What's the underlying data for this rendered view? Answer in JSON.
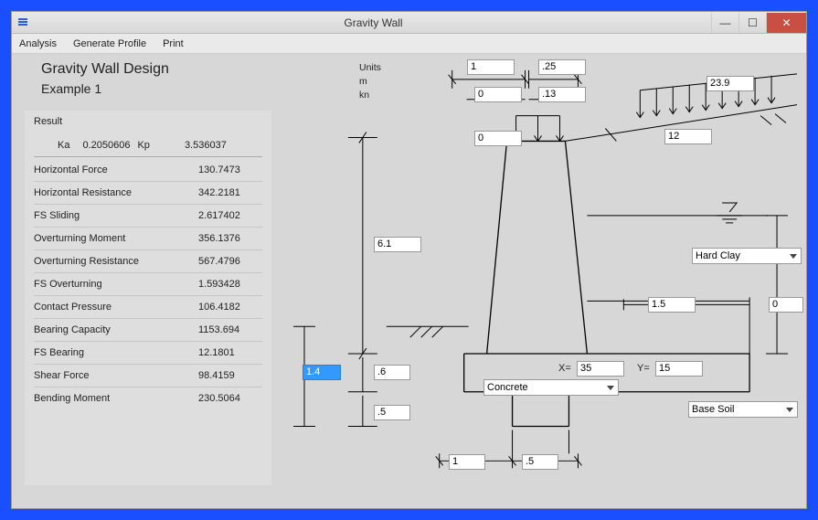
{
  "window": {
    "title": "Gravity Wall"
  },
  "menu": {
    "analysis": "Analysis",
    "generate": "Generate Profile",
    "print": "Print"
  },
  "heading": "Gravity Wall Design",
  "subheading": "Example 1",
  "units": {
    "label": "Units",
    "length": "m",
    "force": "kn"
  },
  "results": {
    "header": "Result",
    "ka_label": "Ka",
    "ka": "0.2050606",
    "kp_label": "Kp",
    "kp": "3.536037",
    "rows": [
      {
        "label": "Horizontal Force",
        "value": "130.7473"
      },
      {
        "label": "Horizontal Resistance",
        "value": "342.2181"
      },
      {
        "label": "FS Sliding",
        "value": "2.617402"
      },
      {
        "label": "Overturning Moment",
        "value": "356.1376"
      },
      {
        "label": "Overturning Resistance",
        "value": "567.4796"
      },
      {
        "label": "FS Overturning",
        "value": "1.593428"
      },
      {
        "label": "Contact Pressure",
        "value": "106.4182"
      },
      {
        "label": "Bearing Capacity",
        "value": "1153.694"
      },
      {
        "label": "FS Bearing",
        "value": "12.1801"
      },
      {
        "label": "Shear Force",
        "value": "98.4159"
      },
      {
        "label": "Bending Moment",
        "value": "230.5064"
      }
    ]
  },
  "inputs": {
    "top_w1": "1",
    "top_w2": ".25",
    "top_o1": "0",
    "top_o2": ".13",
    "surcharge_l": "0",
    "surcharge_r": "23.9",
    "slope_seg": "12",
    "stem_h": "6.1",
    "base_h": ".6",
    "key_h": ".5",
    "key_w1": "1",
    "key_w2": ".5",
    "embed_h": "1.4",
    "heel": "1.5",
    "water_d": "0",
    "x_lbl": "X=",
    "x": "35",
    "y_lbl": "Y=",
    "y": "15"
  },
  "selects": {
    "backfill": "Hard Clay",
    "wall_mat": "Concrete",
    "base_soil": "Base Soil"
  },
  "colors": {
    "frame": "#1a4fff",
    "bg": "#d7d7d7",
    "panel": "#dedede",
    "input_sel": "#3399ff"
  }
}
